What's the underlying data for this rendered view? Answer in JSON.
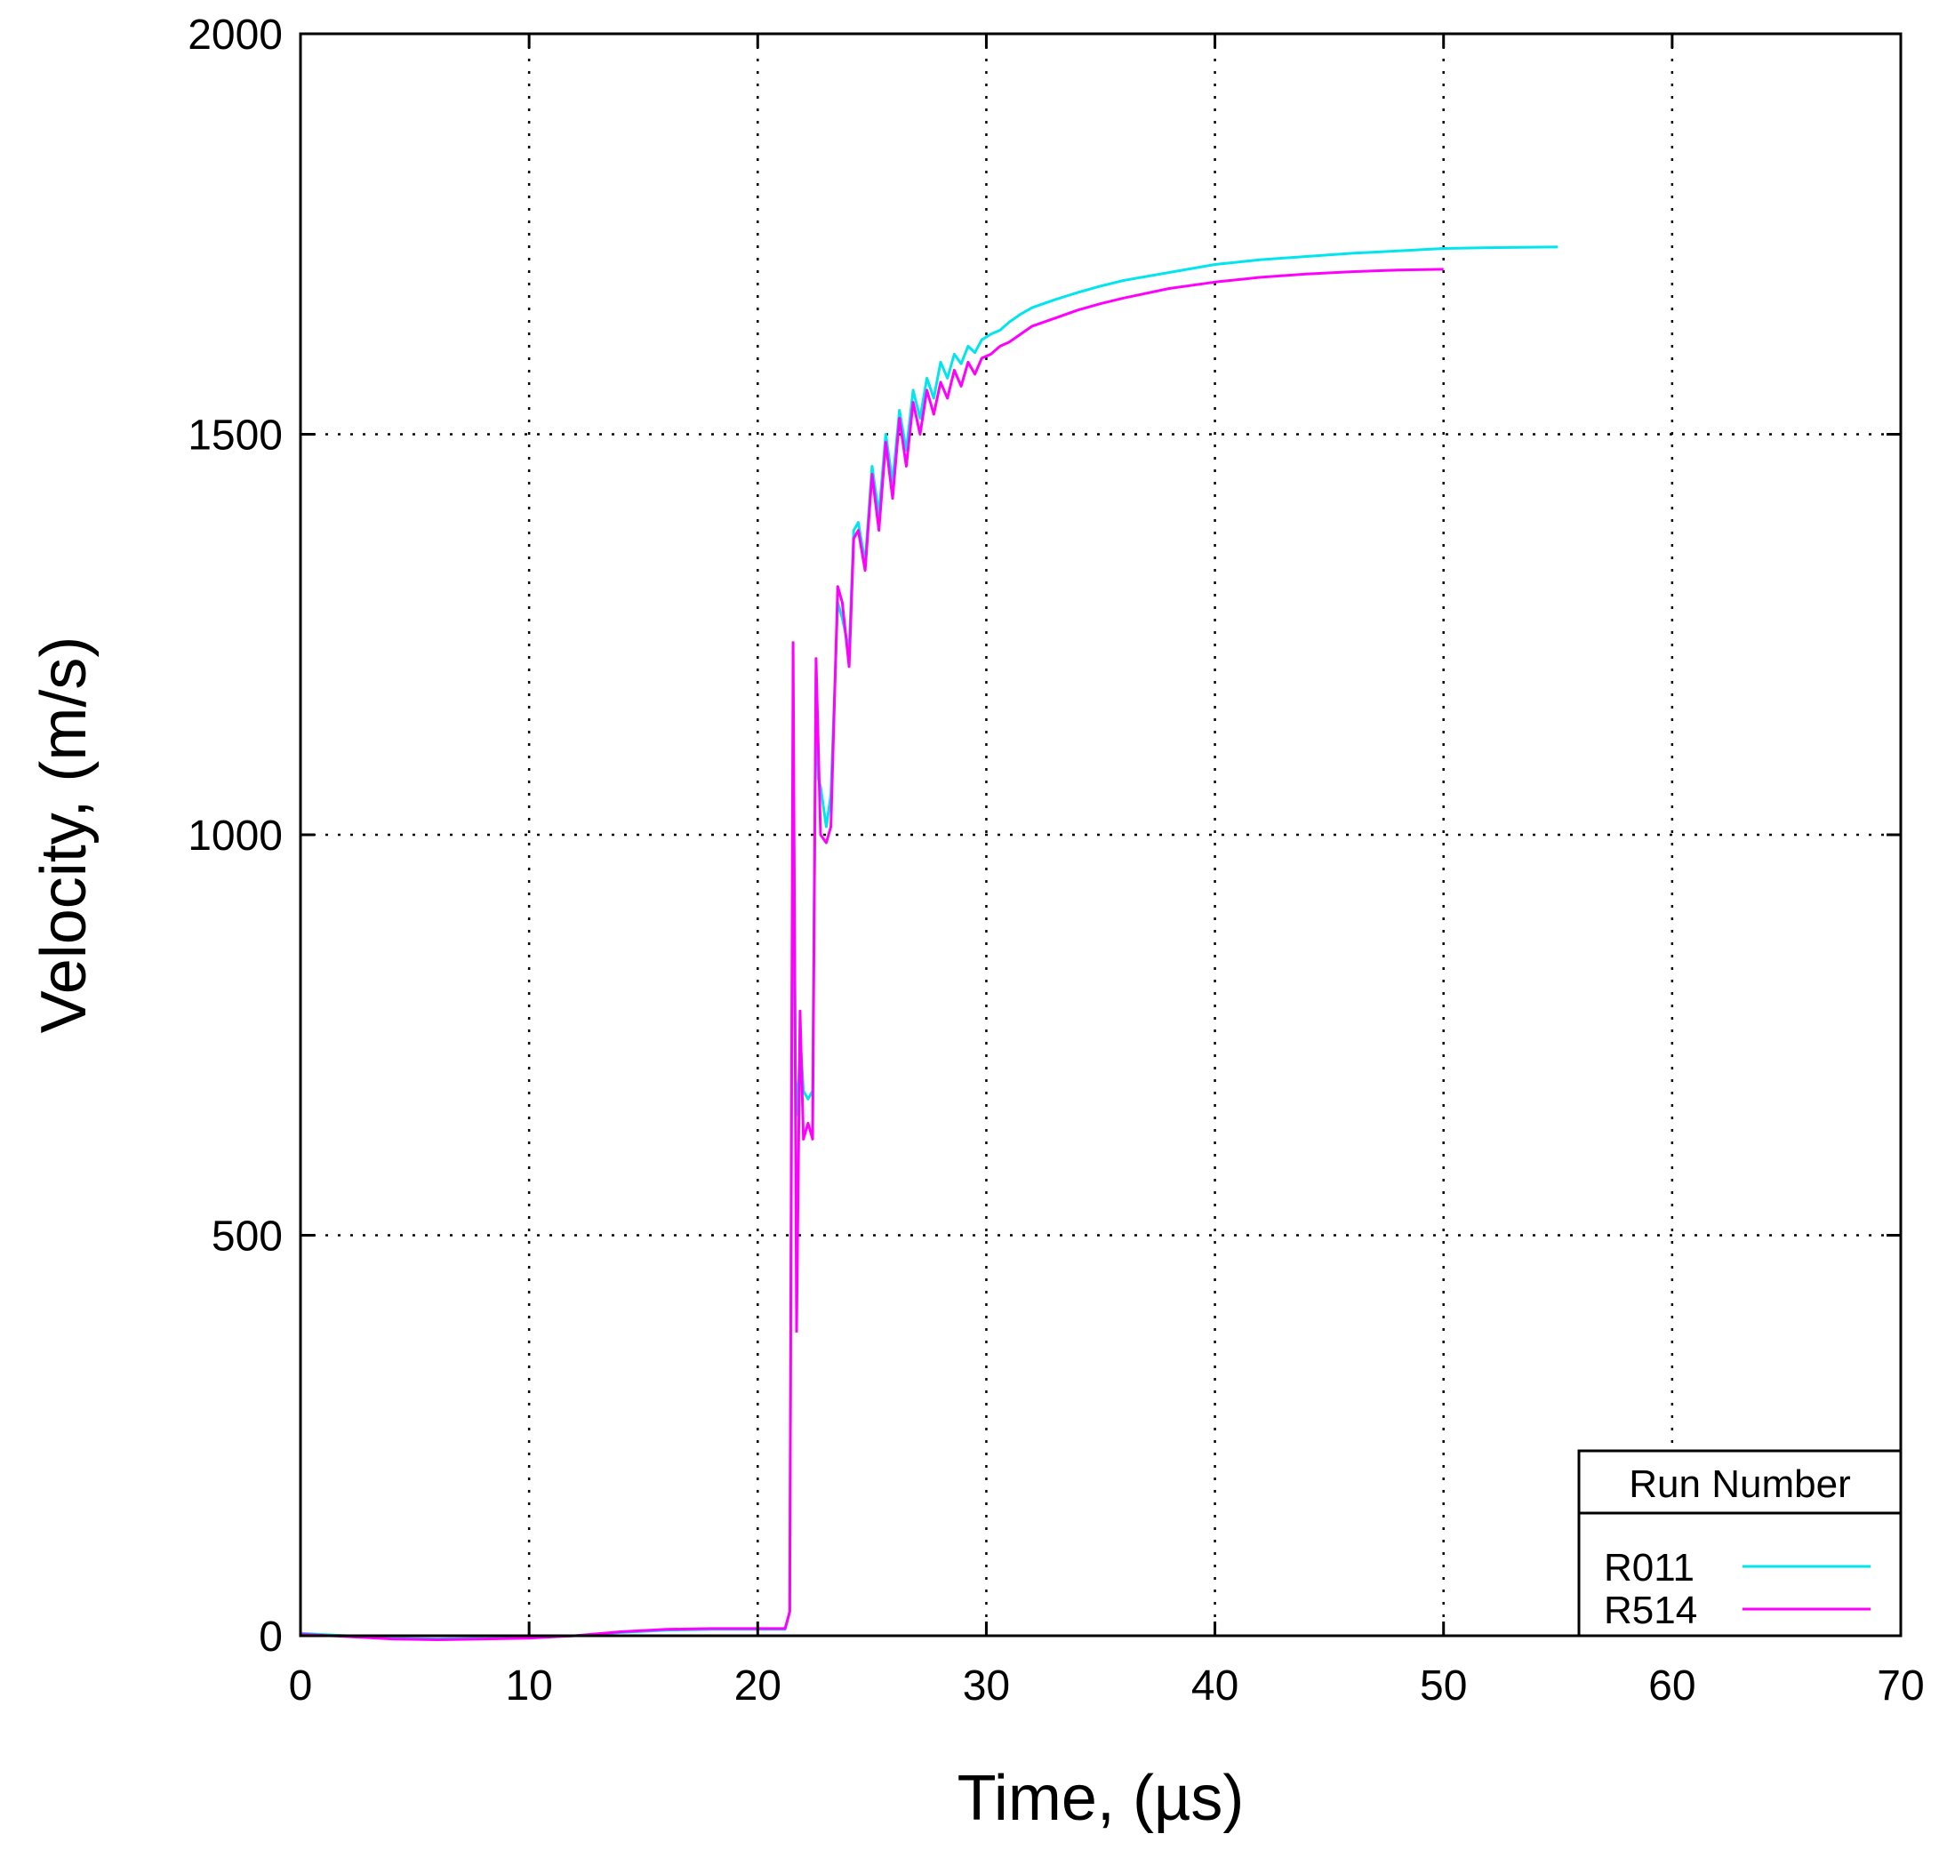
{
  "chart_data": {
    "type": "line",
    "xlabel": "Time, (µs)",
    "ylabel": "Velocity, (m/s)",
    "xlim": [
      0,
      70
    ],
    "ylim": [
      0,
      2000
    ],
    "xticks": [
      0,
      10,
      20,
      30,
      40,
      50,
      60,
      70
    ],
    "yticks": [
      0,
      500,
      1000,
      1500,
      2000
    ],
    "grid": true,
    "legend": {
      "title": "Run Number",
      "position": "bottom-right"
    },
    "series": [
      {
        "name": "R011",
        "color": "#00e5ee",
        "x": [
          0,
          2,
          4,
          6,
          8,
          10,
          12,
          14,
          16,
          18,
          20,
          21.2,
          21.4,
          21.55,
          21.65,
          21.75,
          21.85,
          22.0,
          22.2,
          22.4,
          22.55,
          22.65,
          22.75,
          23.0,
          23.2,
          23.5,
          23.7,
          24.0,
          24.2,
          24.4,
          24.7,
          25.0,
          25.3,
          25.6,
          25.9,
          26.2,
          26.5,
          26.8,
          27.1,
          27.4,
          27.7,
          28.0,
          28.3,
          28.6,
          28.9,
          29.2,
          29.5,
          29.8,
          30.2,
          30.6,
          31.0,
          31.5,
          32.0,
          33,
          34,
          35,
          36,
          38,
          40,
          42,
          44,
          46,
          48,
          50,
          52,
          55
        ],
        "y": [
          3,
          0,
          -3,
          -4,
          -3,
          -2,
          0,
          4,
          7,
          8,
          8,
          8,
          30,
          1150,
          700,
          650,
          750,
          680,
          670,
          680,
          1200,
          1070,
          1060,
          1010,
          1050,
          1290,
          1270,
          1230,
          1380,
          1390,
          1340,
          1460,
          1400,
          1500,
          1440,
          1530,
          1480,
          1555,
          1520,
          1570,
          1545,
          1590,
          1570,
          1600,
          1588,
          1610,
          1602,
          1618,
          1625,
          1630,
          1640,
          1650,
          1658,
          1668,
          1677,
          1685,
          1692,
          1702,
          1712,
          1718,
          1722,
          1726,
          1729,
          1732,
          1733,
          1734
        ]
      },
      {
        "name": "R514",
        "color": "#ff00ff",
        "x": [
          0,
          2,
          4,
          6,
          8,
          10,
          12,
          14,
          16,
          18,
          20,
          21.2,
          21.4,
          21.55,
          21.7,
          21.85,
          22.0,
          22.2,
          22.4,
          22.55,
          22.75,
          23.0,
          23.2,
          23.5,
          23.7,
          24.0,
          24.2,
          24.4,
          24.7,
          25.0,
          25.3,
          25.6,
          25.9,
          26.2,
          26.5,
          26.8,
          27.1,
          27.4,
          27.7,
          28.0,
          28.3,
          28.6,
          28.9,
          29.2,
          29.5,
          29.8,
          30.2,
          30.6,
          31.0,
          31.5,
          32.0,
          33,
          34,
          35,
          36,
          38,
          40,
          42,
          44,
          46,
          48,
          50
        ],
        "y": [
          2,
          -1,
          -4,
          -5,
          -4,
          -3,
          0,
          5,
          8,
          9,
          9,
          9,
          30,
          1240,
          380,
          780,
          620,
          640,
          620,
          1220,
          1000,
          990,
          1010,
          1310,
          1290,
          1210,
          1370,
          1380,
          1330,
          1450,
          1380,
          1490,
          1420,
          1520,
          1460,
          1540,
          1500,
          1555,
          1525,
          1565,
          1545,
          1580,
          1560,
          1590,
          1575,
          1595,
          1600,
          1610,
          1615,
          1625,
          1635,
          1645,
          1655,
          1663,
          1670,
          1682,
          1690,
          1696,
          1700,
          1703,
          1705,
          1706
        ]
      }
    ]
  }
}
